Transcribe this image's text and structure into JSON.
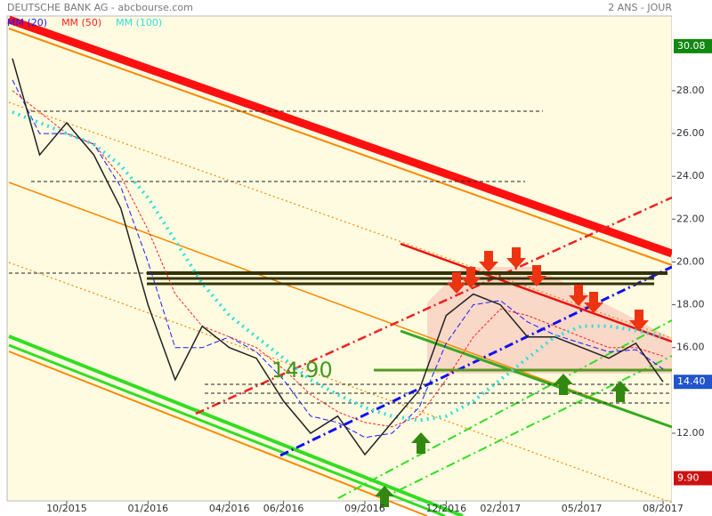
{
  "chart_data": {
    "type": "line",
    "title": "DEUTSCHE BANK AG - abcbourse.com",
    "subtitle": "2 ANS - JOUR",
    "x": [
      "08/2015",
      "09/2015",
      "10/2015",
      "11/2015",
      "12/2015",
      "01/2016",
      "02/2016",
      "03/2016",
      "04/2016",
      "05/2016",
      "06/2016",
      "07/2016",
      "08/2016",
      "09/2016",
      "10/2016",
      "11/2016",
      "12/2016",
      "01/2017",
      "02/2017",
      "03/2017",
      "04/2017",
      "05/2017",
      "06/2017",
      "07/2017",
      "08/2017"
    ],
    "xticks": [
      "10/2015",
      "01/2016",
      "04/2016",
      "06/2016",
      "09/2016",
      "12/2016",
      "02/2017",
      "05/2017",
      "08/2017"
    ],
    "values": [
      29.5,
      25,
      26.5,
      25,
      22.5,
      18,
      14.5,
      17,
      16,
      15.5,
      13.5,
      12,
      12.8,
      11,
      12.5,
      14,
      17.5,
      18.5,
      18,
      16.5,
      16.5,
      16,
      15.5,
      16.2,
      14.4
    ],
    "color": "#222222",
    "series": [
      {
        "name": "MM (20)",
        "color": "#1a1aff",
        "values": [
          28.5,
          26,
          26,
          25.5,
          23.5,
          20,
          16,
          16,
          16.5,
          15.8,
          14.5,
          12.8,
          12.5,
          11.8,
          12,
          13.2,
          16.2,
          18,
          18.2,
          17.2,
          16.6,
          16.2,
          15.8,
          15.9,
          15
        ]
      },
      {
        "name": "MM (50)",
        "color": "#ff2020",
        "values": [
          28,
          27,
          26,
          25.5,
          24,
          21.5,
          18.5,
          17,
          16.5,
          16,
          15,
          13.8,
          13,
          12.5,
          12.3,
          12.8,
          14.5,
          16.5,
          17.8,
          17.5,
          17,
          16.5,
          16,
          16,
          15.6
        ]
      },
      {
        "name": "MM (100)",
        "color": "#33dddd",
        "values": [
          27,
          26.5,
          26,
          25.5,
          24.5,
          23,
          21,
          19,
          17.5,
          16.5,
          15.5,
          14.5,
          13.8,
          13.2,
          12.8,
          12.6,
          12.8,
          13.5,
          14.5,
          15.5,
          16.5,
          17,
          17,
          16.8,
          16.5
        ]
      }
    ],
    "ylim": [
      8.84,
      31.82
    ],
    "yticks": [
      {
        "value": 12,
        "label": "12.00"
      },
      {
        "value": 16,
        "label": "16.00"
      },
      {
        "value": 18,
        "label": "18.00"
      },
      {
        "value": 20,
        "label": "20.00"
      },
      {
        "value": 22,
        "label": "22.00"
      },
      {
        "value": 24,
        "label": "24.00"
      },
      {
        "value": 26,
        "label": "26.00"
      },
      {
        "value": 28,
        "label": "28.00"
      }
    ],
    "annotations": [
      {
        "text": "14.90",
        "value": 14.9
      },
      {
        "text": "30.08",
        "value": 30.08,
        "color": "#118811"
      },
      {
        "text": "14.40",
        "value": 14.4,
        "color": "#2255cc"
      },
      {
        "text": "9.90",
        "value": 9.9,
        "color": "#cc1111"
      }
    ]
  }
}
